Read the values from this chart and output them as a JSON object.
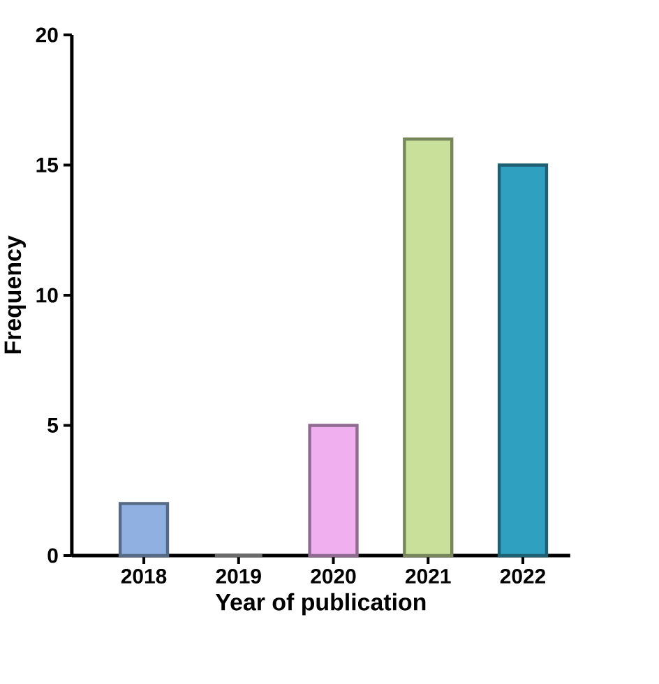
{
  "chart_data": {
    "type": "bar",
    "xlabel": "Year of publication",
    "ylabel": "Frequency",
    "categories": [
      "2018",
      "2019",
      "2020",
      "2021",
      "2022"
    ],
    "values": [
      2,
      0,
      5,
      16,
      15
    ],
    "colors": [
      "#8fb0e0",
      "#b0b0b0",
      "#f0b0f0",
      "#c8e09a",
      "#30a0c0"
    ],
    "ylim": [
      0,
      20
    ],
    "yticks": [
      0,
      5,
      10,
      15,
      20
    ]
  }
}
